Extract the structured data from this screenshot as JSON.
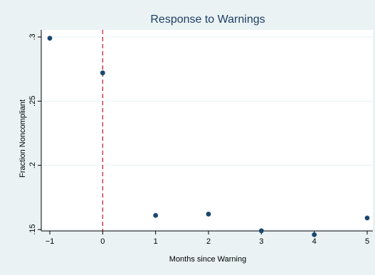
{
  "chart_data": {
    "type": "scatter",
    "title": "Response to Warnings",
    "xlabel": "Months since Warning",
    "ylabel": "Fraction Noncompliant",
    "x_ticks": [
      -1,
      0,
      1,
      2,
      3,
      4,
      5
    ],
    "x_tick_labels": [
      "−1",
      "0",
      "1",
      "2",
      "3",
      "4",
      "5"
    ],
    "y_ticks": [
      0.15,
      0.2,
      0.25,
      0.3
    ],
    "y_tick_labels": [
      ".15",
      ".2",
      ".25",
      ".3"
    ],
    "xlim": [
      -1,
      5
    ],
    "ylim": [
      0.15,
      0.3
    ],
    "grid": true,
    "reference_line": {
      "x": 0,
      "style": "dashed",
      "color": "#c8102e"
    },
    "series": [
      {
        "color": "#1a476f",
        "points": [
          {
            "x": -1,
            "y": 0.299
          },
          {
            "x": 0,
            "y": 0.272
          },
          {
            "x": 1,
            "y": 0.161
          },
          {
            "x": 2,
            "y": 0.162
          },
          {
            "x": 3,
            "y": 0.149
          },
          {
            "x": 4,
            "y": 0.146
          },
          {
            "x": 5,
            "y": 0.159
          }
        ]
      }
    ]
  }
}
